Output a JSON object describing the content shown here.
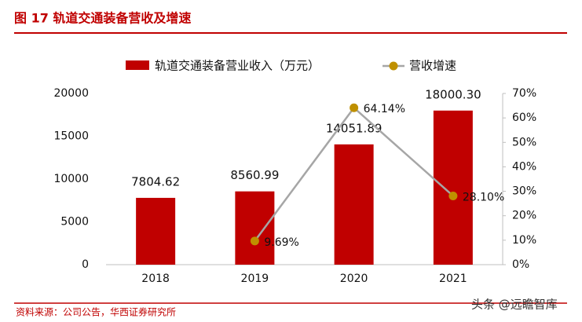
{
  "chart_data": {
    "type": "bar",
    "title": "图 17 轨道交通装备营收及增速",
    "source": "资料来源：公司公告，华西证券研究所",
    "watermark": "头条 @远瞻智库",
    "categories": [
      "2018",
      "2019",
      "2020",
      "2021"
    ],
    "series": [
      {
        "name": "轨道交通装备营业收入（万元）",
        "color": "#c00000",
        "values": [
          7804.62,
          8560.99,
          14051.89,
          18000.3
        ],
        "value_labels": [
          "7804.62",
          "8560.99",
          "14051.89",
          "18000.30"
        ]
      },
      {
        "name": "营收增速",
        "type": "line",
        "axis": "y2",
        "color": "#a6a6a6",
        "marker_color": "#bf9000",
        "values": [
          null,
          9.69,
          64.14,
          28.1
        ],
        "value_labels": [
          null,
          "9.69%",
          "64.14%",
          "28.10%"
        ]
      }
    ],
    "ylim": [
      0,
      20000
    ],
    "yticks": [
      0,
      5000,
      10000,
      15000,
      20000
    ],
    "y2lim": [
      0,
      70
    ],
    "y2ticks": [
      {
        "value": 0,
        "label": "0%"
      },
      {
        "value": 10,
        "label": "10%"
      },
      {
        "value": 20,
        "label": "20%"
      },
      {
        "value": 30,
        "label": "30%"
      },
      {
        "value": 40,
        "label": "40%"
      },
      {
        "value": 50,
        "label": "50%"
      },
      {
        "value": 60,
        "label": "60%"
      },
      {
        "value": 70,
        "label": "70%"
      }
    ],
    "grid": false,
    "legend": "top"
  }
}
